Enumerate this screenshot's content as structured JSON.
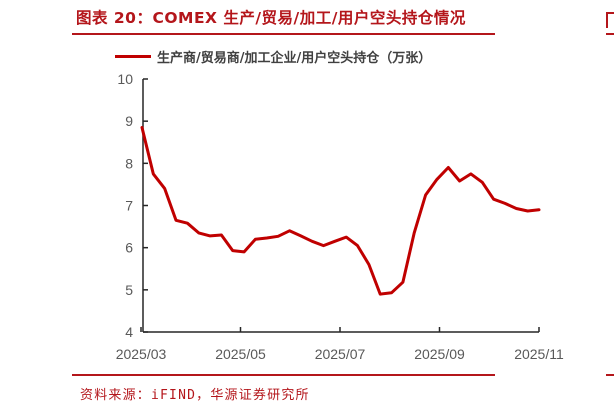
{
  "figure": {
    "title": "图表 20：COMEX 生产/贸易/加工/用户空头持仓情况",
    "source": "资料来源：iFIND，华源证券研究所",
    "accent_color": "#b4161b",
    "line_color": "#c00000"
  },
  "chart_data": {
    "type": "line",
    "title": "图表 20：COMEX 生产/贸易/加工/用户空头持仓情况",
    "xlabel": "",
    "ylabel": "",
    "legend": [
      "生产商/贸易商/加工企业/用户空头持仓（万张）"
    ],
    "legend_position": "top",
    "grid": false,
    "ylim": [
      4,
      10
    ],
    "yticks": [
      4,
      5,
      6,
      7,
      8,
      9,
      10
    ],
    "xticks": [
      "2025/03",
      "2025/05",
      "2025/07",
      "2025/09",
      "2025/11"
    ],
    "x": [
      "2025-03-04",
      "2025-03-11",
      "2025-03-18",
      "2025-03-25",
      "2025-04-01",
      "2025-04-08",
      "2025-04-15",
      "2025-04-22",
      "2025-04-29",
      "2025-05-06",
      "2025-05-13",
      "2025-05-20",
      "2025-05-27",
      "2025-06-03",
      "2025-06-10",
      "2025-06-17",
      "2025-06-24",
      "2025-07-01",
      "2025-07-08",
      "2025-07-15",
      "2025-07-22",
      "2025-07-29",
      "2025-08-05",
      "2025-08-12",
      "2025-08-19",
      "2025-08-26",
      "2025-09-02",
      "2025-09-09",
      "2025-09-16",
      "2025-09-23",
      "2025-09-30",
      "2025-10-07",
      "2025-10-14",
      "2025-10-21",
      "2025-10-28",
      "2025-11-04"
    ],
    "series": [
      {
        "name": "生产商/贸易商/加工企业/用户空头持仓（万张）",
        "color": "#c00000",
        "values": [
          8.85,
          7.75,
          7.4,
          6.65,
          6.58,
          6.35,
          6.28,
          6.3,
          5.93,
          5.9,
          6.2,
          6.23,
          6.27,
          6.4,
          6.28,
          6.15,
          6.05,
          6.15,
          6.25,
          6.05,
          5.6,
          4.9,
          4.93,
          5.18,
          6.35,
          7.25,
          7.62,
          7.9,
          7.58,
          7.75,
          7.55,
          7.15,
          7.05,
          6.93,
          6.87,
          6.9
        ]
      }
    ]
  }
}
